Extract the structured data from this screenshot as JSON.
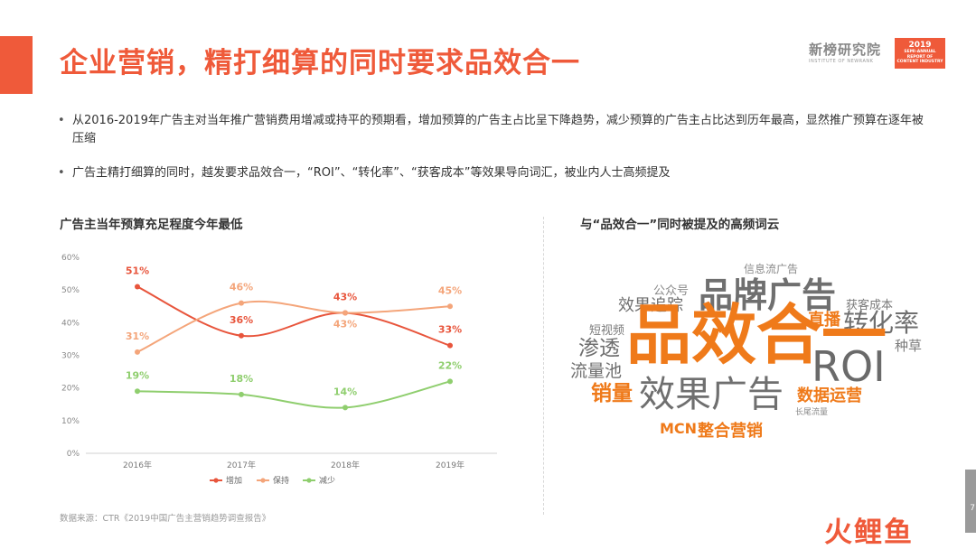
{
  "header": {
    "title": "企业营销，精打细算的同时要求品效合一",
    "brand_name": "新榜研究院",
    "brand_sub": "INSTITUTE OF NEWRANK",
    "report_year": "2019",
    "report_lines": [
      "SEMI-ANNUAL",
      "REPORT OF",
      "CONTENT INDUSTRY"
    ]
  },
  "bullets": [
    "从2016-2019年广告主对当年推广营销费用增减或持平的预期看，增加预算的广告主占比呈下降趋势，减少预算的广告主占比达到历年最高，显然推广预算在逐年被压缩",
    "广告主精打细算的同时，越发要求品效合一，“ROI”、“转化率”、“获客成本”等效果导向词汇，被业内人士高频提及"
  ],
  "left_title": "广告主当年预算充足程度今年最低",
  "right_title": "与“品效合一”同时被提及的高频词云",
  "source": "数据来源：CTR《2019中国广告主营销趋势调查报告》",
  "chart_data": {
    "type": "line",
    "categories": [
      "2016年",
      "2017年",
      "2018年",
      "2019年"
    ],
    "y_ticks": [
      "0%",
      "10%",
      "20%",
      "30%",
      "40%",
      "50%",
      "60%"
    ],
    "ylim": [
      0,
      60
    ],
    "series": [
      {
        "name": "增加",
        "values": [
          51,
          36,
          43,
          33
        ],
        "labels": [
          "51%",
          "36%",
          "43%",
          "33%"
        ],
        "color": "#e8553c"
      },
      {
        "name": "保持",
        "values": [
          31,
          46,
          43,
          45
        ],
        "labels": [
          "31%",
          "46%",
          "43%",
          "45%"
        ],
        "color": "#f4a57a"
      },
      {
        "name": "减少",
        "values": [
          19,
          18,
          14,
          22
        ],
        "labels": [
          "19%",
          "18%",
          "14%",
          "22%"
        ],
        "color": "#8fce6e"
      }
    ],
    "legend_position": "bottom",
    "grid": false
  },
  "word_cloud": [
    {
      "text": "信息流广告",
      "color": "#8a8a8a"
    },
    {
      "text": "公众号",
      "color": "#8a8a8a"
    },
    {
      "text": "品牌广告",
      "color": "#6f6f6f"
    },
    {
      "text": "效果追踪",
      "color": "#6f6f6f"
    },
    {
      "text": "获客成本",
      "color": "#7a7a7a"
    },
    {
      "text": "短视频",
      "color": "#7a7a7a"
    },
    {
      "text": "直播",
      "color": "#ef7a1a"
    },
    {
      "text": "转化率",
      "color": "#6f6f6f"
    },
    {
      "text": "渗透",
      "color": "#6f6f6f"
    },
    {
      "text": "品效合一",
      "color": "#ef7a1a"
    },
    {
      "text": "种草",
      "color": "#7a7a7a"
    },
    {
      "text": "ROI",
      "color": "#6a6a6a"
    },
    {
      "text": "流量池",
      "color": "#6f6f6f"
    },
    {
      "text": "销量",
      "color": "#ef7a1a"
    },
    {
      "text": "效果广告",
      "color": "#6f6f6f"
    },
    {
      "text": "数据运营",
      "color": "#ef7a1a"
    },
    {
      "text": "长尾流量",
      "color": "#8a8a8a"
    },
    {
      "text": "MCN",
      "color": "#ef7a1a"
    },
    {
      "text": "整合营销",
      "color": "#ef7a1a"
    }
  ],
  "footer": {
    "page_number": "7",
    "logo_text": "火鲤鱼"
  }
}
